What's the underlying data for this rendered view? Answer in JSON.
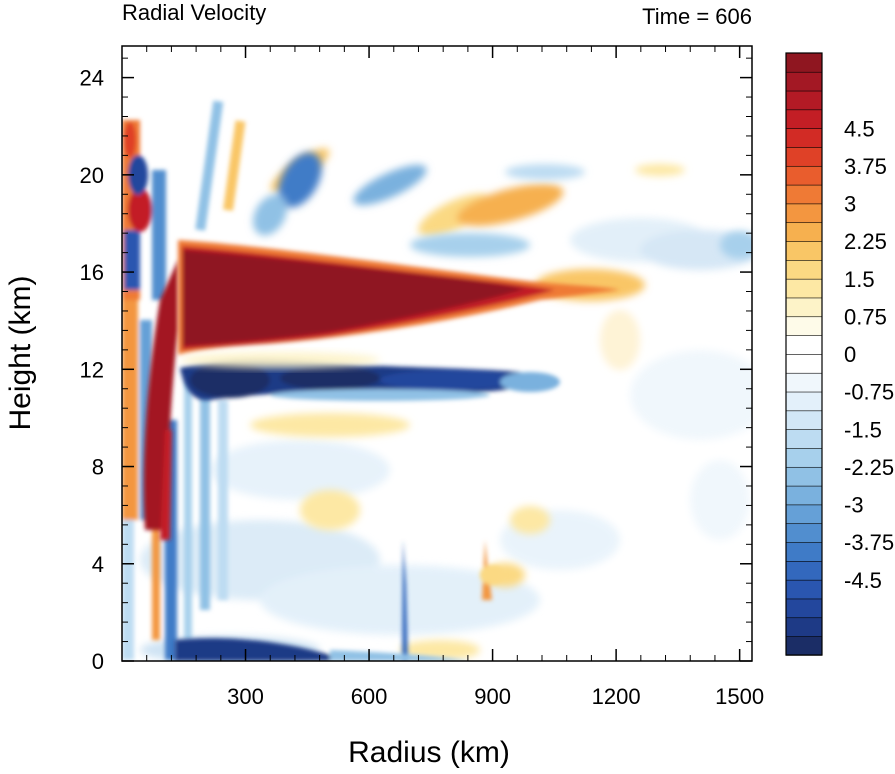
{
  "chart_data": {
    "type": "heatmap",
    "title_left": "Radial Velocity",
    "title_right": "Time = 606",
    "xlabel": "Radius (km)",
    "ylabel": "Height (km)",
    "xlim": [
      0,
      1530
    ],
    "ylim": [
      0,
      25.3
    ],
    "x_ticks": [
      300,
      600,
      900,
      1200,
      1500
    ],
    "y_ticks": [
      0,
      4,
      8,
      12,
      16,
      20,
      24
    ],
    "x_tick_labels": [
      "300",
      "600",
      "900",
      "1200",
      "1500"
    ],
    "y_tick_labels": [
      "0",
      "4",
      "8",
      "12",
      "16",
      "20",
      "24"
    ],
    "grid": false,
    "colorbar": {
      "placement": "right",
      "levels": 32,
      "vmin": -6,
      "vmax": 6,
      "labels": [
        {
          "value": 4.5,
          "text": "4.5"
        },
        {
          "value": 3.75,
          "text": "3.75"
        },
        {
          "value": 3.0,
          "text": "3"
        },
        {
          "value": 2.25,
          "text": "2.25"
        },
        {
          "value": 1.5,
          "text": "1.5"
        },
        {
          "value": 0.75,
          "text": "0.75"
        },
        {
          "value": 0.0,
          "text": "0"
        },
        {
          "value": -0.75,
          "text": "-0.75"
        },
        {
          "value": -1.5,
          "text": "-1.5"
        },
        {
          "value": -2.25,
          "text": "-2.25"
        },
        {
          "value": -3.0,
          "text": "-3"
        },
        {
          "value": -3.75,
          "text": "-3.75"
        },
        {
          "value": -4.5,
          "text": "-4.5"
        }
      ],
      "colors": [
        "#1b2d66",
        "#1e3a86",
        "#23479d",
        "#2a56b0",
        "#3368bd",
        "#3f7bc7",
        "#518ecf",
        "#65a0d7",
        "#7ab1de",
        "#90c1e5",
        "#a7d0ec",
        "#bddcf2",
        "#d2e7f6",
        "#e3f0fa",
        "#f0f7fc",
        "#ffffff",
        "#ffffff",
        "#fefbe9",
        "#fdf3c8",
        "#fde8a4",
        "#fbd983",
        "#f9c666",
        "#f6b04f",
        "#f39640",
        "#ef7a35",
        "#e95d2d",
        "#df4127",
        "#d22b25",
        "#c31e25",
        "#b31a25",
        "#a31824",
        "#8f1620"
      ]
    },
    "features": [
      {
        "name": "upper-level outflow jet",
        "r": [
          150,
          1000
        ],
        "z": [
          13,
          17
        ],
        "value": "> 5"
      },
      {
        "name": "inflow layer below outflow",
        "r": [
          150,
          660
        ],
        "z": [
          10.5,
          12.8
        ],
        "value": "< -5"
      },
      {
        "name": "eyewall updraft outflow",
        "r": [
          100,
          150
        ],
        "z": [
          5,
          17
        ],
        "value": "> 5"
      },
      {
        "name": "boundary-layer inflow",
        "r": [
          130,
          400
        ],
        "z": [
          0,
          0.8
        ],
        "value": "< -5"
      }
    ]
  }
}
